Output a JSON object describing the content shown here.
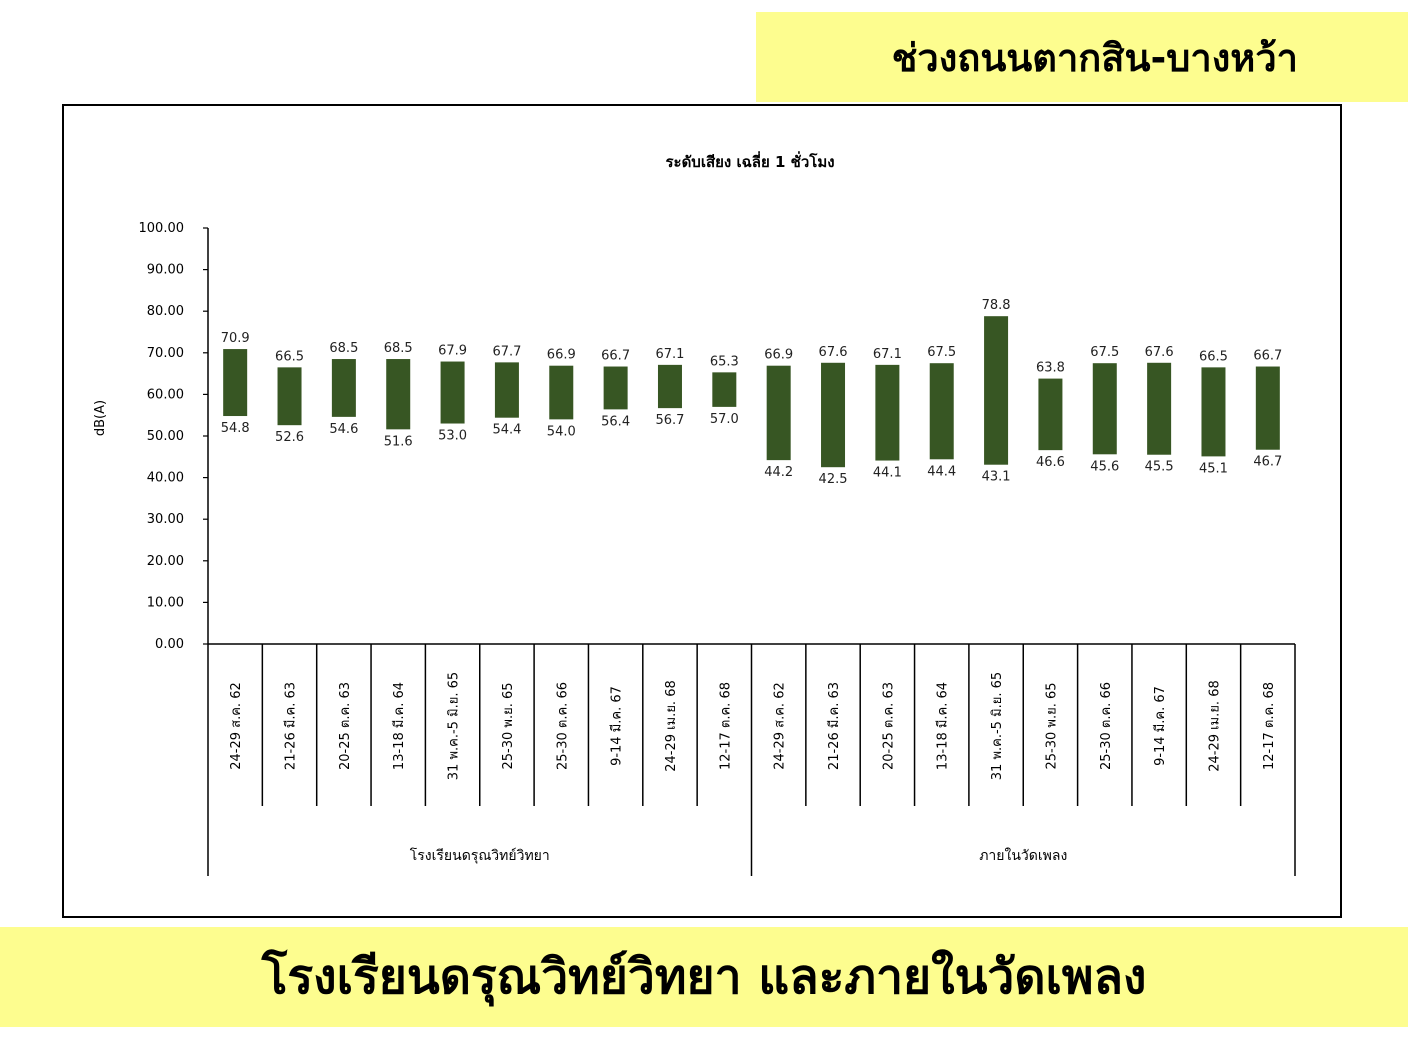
{
  "header": {
    "title": "ช่วงถนนตากสิน-บางหว้า"
  },
  "footer": {
    "title": "โรงเรียนดรุณวิทย์วิทยา และภายในวัดเพลง"
  },
  "chart_data": {
    "type": "bar",
    "subtype": "floating-range",
    "title": "ระดับเสียง เฉลี่ย 1 ชั่วโมง",
    "ylabel": "dB(A)",
    "ylim": [
      0,
      100
    ],
    "yticks": [
      "0.00",
      "10.00",
      "20.00",
      "30.00",
      "40.00",
      "50.00",
      "60.00",
      "70.00",
      "80.00",
      "90.00",
      "100.00"
    ],
    "bar_color": "#375623",
    "categories": [
      "24-29 ส.ค. 62",
      "21-26 มี.ค. 63",
      "20-25 ต.ค. 63",
      "13-18 มี.ค. 64",
      "31 พ.ค.-5 มิ.ย. 65",
      "25-30 พ.ย. 65",
      "25-30 ต.ค. 66",
      "9-14 มี.ค. 67",
      "24-29 เม.ย. 68",
      "12-17 ต.ค. 68",
      "24-29 ส.ค. 62",
      "21-26 มี.ค. 63",
      "20-25 ต.ค. 63",
      "13-18 มี.ค. 64",
      "31 พ.ค.-5 มิ.ย. 65",
      "25-30 พ.ย. 65",
      "25-30 ต.ค. 66",
      "9-14 มี.ค. 67",
      "24-29 เม.ย. 68",
      "12-17 ต.ค. 68"
    ],
    "groups": [
      {
        "label": "โรงเรียนดรุณวิทย์วิทยา",
        "count": 10
      },
      {
        "label": "ภายในวัดเพลง",
        "count": 10
      }
    ],
    "series": [
      {
        "values": [
          70.9,
          66.5,
          68.5,
          68.5,
          67.9,
          67.7,
          66.9,
          66.7,
          67.1,
          65.3,
          66.9,
          67.6,
          67.1,
          67.5,
          78.8,
          63.8,
          67.5,
          67.6,
          66.5,
          66.7
        ],
        "labels": [
          "70.9",
          "66.5",
          "68.5",
          "68.5",
          "67.9",
          "67.7",
          "66.9",
          "66.7",
          "67.1",
          "65.3",
          "66.9",
          "67.6",
          "67.1",
          "67.5",
          "78.8",
          "63.8",
          "67.5",
          "67.6",
          "66.5",
          "66.7"
        ]
      },
      {
        "values": [
          54.8,
          52.6,
          54.6,
          51.6,
          53.0,
          54.4,
          54.0,
          56.4,
          56.7,
          57.0,
          44.2,
          42.5,
          44.1,
          44.4,
          43.1,
          46.6,
          45.6,
          45.5,
          45.1,
          46.7
        ],
        "labels": [
          "54.8",
          "52.6",
          "54.6",
          "51.6",
          "53.0",
          "54.4",
          "54.0",
          "56.4",
          "56.7",
          "57.0",
          "44.2",
          "42.5",
          "44.1",
          "44.4",
          "43.1",
          "46.6",
          "45.6",
          "45.5",
          "45.1",
          "46.7"
        ]
      }
    ]
  }
}
